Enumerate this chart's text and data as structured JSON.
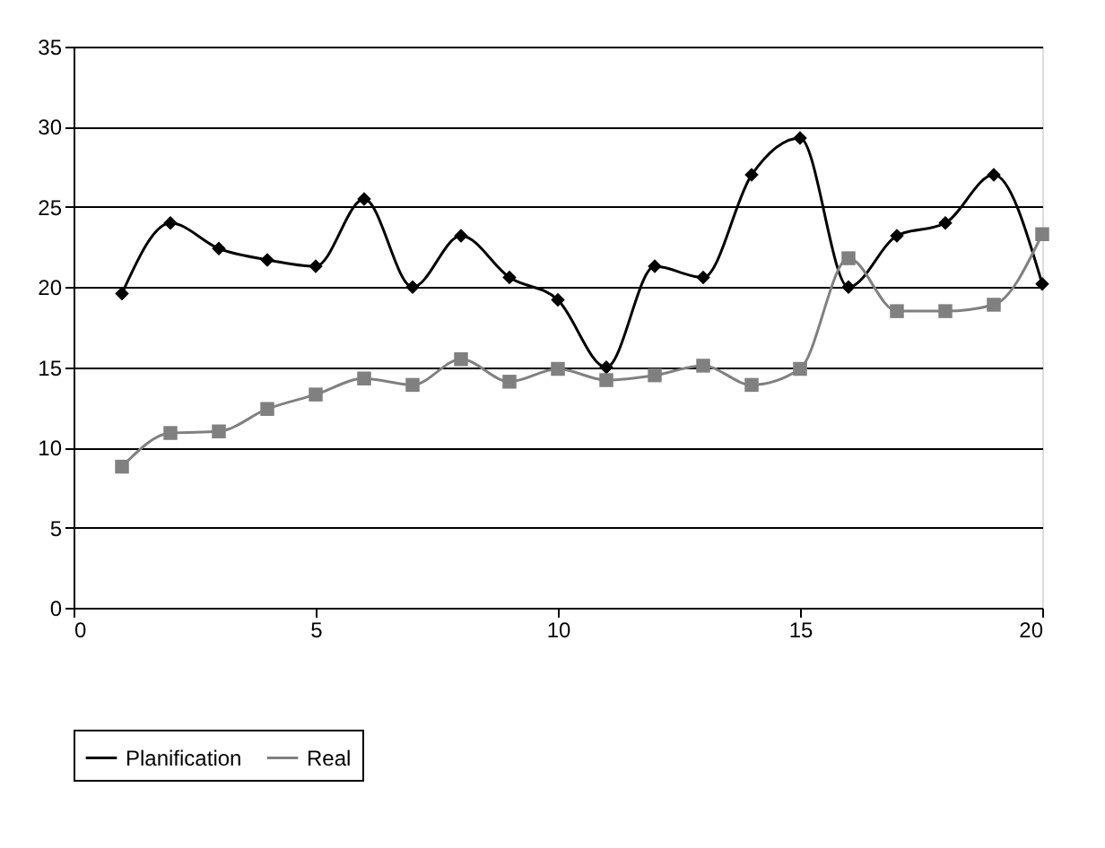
{
  "chart_data": {
    "type": "line",
    "x": [
      1,
      2,
      3,
      4,
      5,
      6,
      7,
      8,
      9,
      10,
      11,
      12,
      13,
      14,
      15,
      16,
      17,
      18,
      19,
      20
    ],
    "series": [
      {
        "name": "Planification",
        "color": "#000000",
        "marker": "diamond",
        "values": [
          19.6,
          24,
          22.4,
          21.7,
          21.3,
          25.5,
          20,
          23.2,
          20.6,
          19.2,
          15,
          21.3,
          20.6,
          27,
          29.3,
          20,
          23.2,
          24,
          27,
          20.2
        ]
      },
      {
        "name": "Real",
        "color": "#808080",
        "marker": "square",
        "values": [
          8.8,
          10.9,
          11,
          12.4,
          13.3,
          14.3,
          13.9,
          15.5,
          14.1,
          14.9,
          14.2,
          14.5,
          15.1,
          13.9,
          14.9,
          21.8,
          18.5,
          18.5,
          18.9,
          23.3
        ]
      }
    ],
    "xlim": [
      0,
      20
    ],
    "xticks": [
      0,
      5,
      10,
      15,
      20
    ],
    "ylim": [
      0,
      35
    ],
    "yticks": [
      0,
      5,
      10,
      15,
      20,
      25,
      30,
      35
    ],
    "grid": "y",
    "legend": "bottom",
    "line_style": "solid"
  }
}
